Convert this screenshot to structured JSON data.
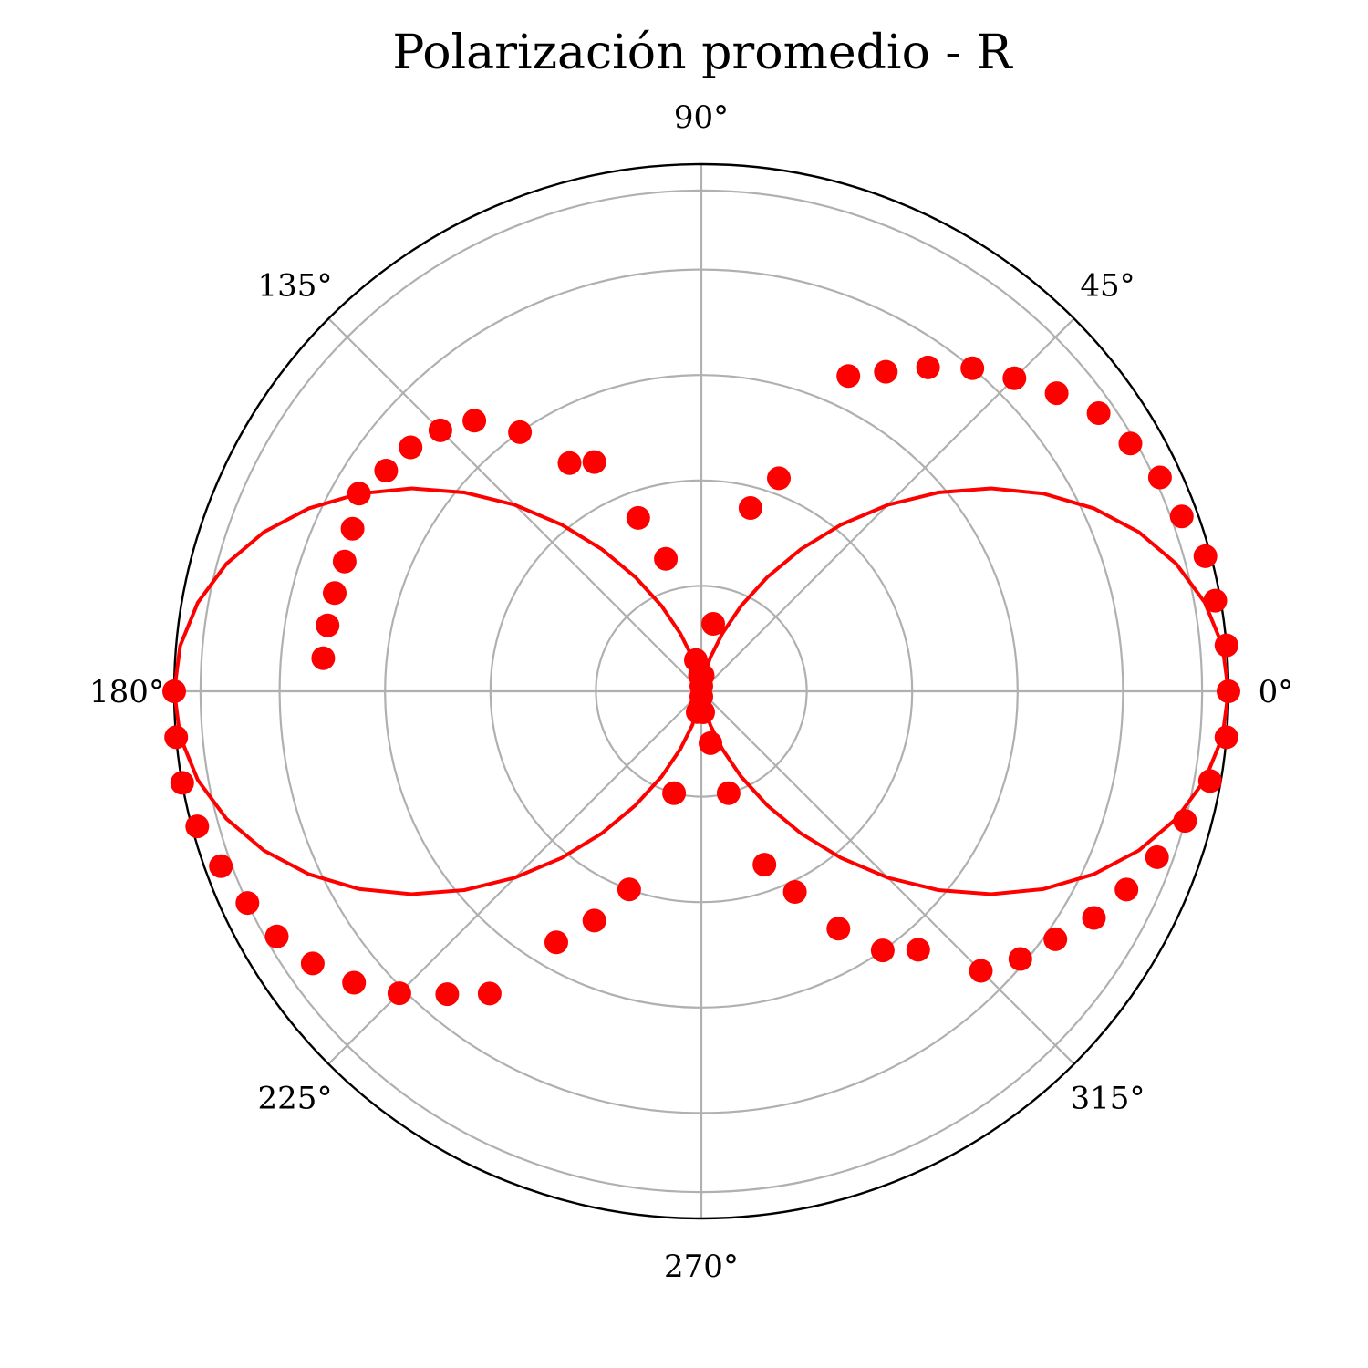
{
  "chart_data": {
    "type": "scatter",
    "projection": "polar",
    "title": "Polarización promedio - R",
    "theta_unit": "degrees",
    "theta_ticks": [
      "0°",
      "45°",
      "90°",
      "135°",
      "180°",
      "225°",
      "270°",
      "315°"
    ],
    "theta_tick_values": [
      0,
      45,
      90,
      135,
      180,
      225,
      270,
      315
    ],
    "r_range": [
      0,
      1
    ],
    "r_gridlines": [
      0.2,
      0.4,
      0.6,
      0.8,
      0.95
    ],
    "r_ticklabels_visible": false,
    "grid": true,
    "color": "#ff0000",
    "series": [
      {
        "kind": "points",
        "theta": [
          0,
          5,
          10,
          15,
          20,
          25,
          30,
          35,
          40,
          45,
          50,
          55,
          60,
          65,
          70,
          75,
          80,
          85,
          90,
          95,
          100,
          105,
          110,
          115,
          120,
          125,
          130,
          135,
          140,
          145,
          150,
          155,
          160,
          165,
          170,
          175,
          180,
          185,
          190,
          195,
          200,
          205,
          210,
          215,
          220,
          225,
          230,
          235,
          240,
          245,
          250,
          255,
          260,
          265,
          270,
          275,
          280,
          285,
          290,
          295,
          300,
          305,
          310,
          315,
          320,
          325,
          330,
          335,
          340,
          345,
          350,
          355
        ],
        "r": [
          1.0,
          1.0,
          0.99,
          0.99,
          0.97,
          0.96,
          0.94,
          0.92,
          0.88,
          0.84,
          0.8,
          0.75,
          0.7,
          0.66,
          0.43,
          0.36,
          0.13,
          0.03,
          0.01,
          0.03,
          0.06,
          0.26,
          0.35,
          0.48,
          0.5,
          0.6,
          0.67,
          0.7,
          0.72,
          0.73,
          0.75,
          0.73,
          0.72,
          0.72,
          0.72,
          0.72,
          1.0,
          1.0,
          1.0,
          0.99,
          0.97,
          0.95,
          0.93,
          0.9,
          0.86,
          0.81,
          0.75,
          0.7,
          0.55,
          0.48,
          0.4,
          0.2,
          0.04,
          0.03,
          0.01,
          0.04,
          0.1,
          0.2,
          0.35,
          0.42,
          0.52,
          0.6,
          0.64,
          0.75,
          0.79,
          0.82,
          0.86,
          0.89,
          0.92,
          0.95,
          0.98,
          1.0
        ]
      },
      {
        "kind": "line",
        "function": "cos^2",
        "amplitude": 1.0,
        "theta_step": 5
      }
    ]
  }
}
